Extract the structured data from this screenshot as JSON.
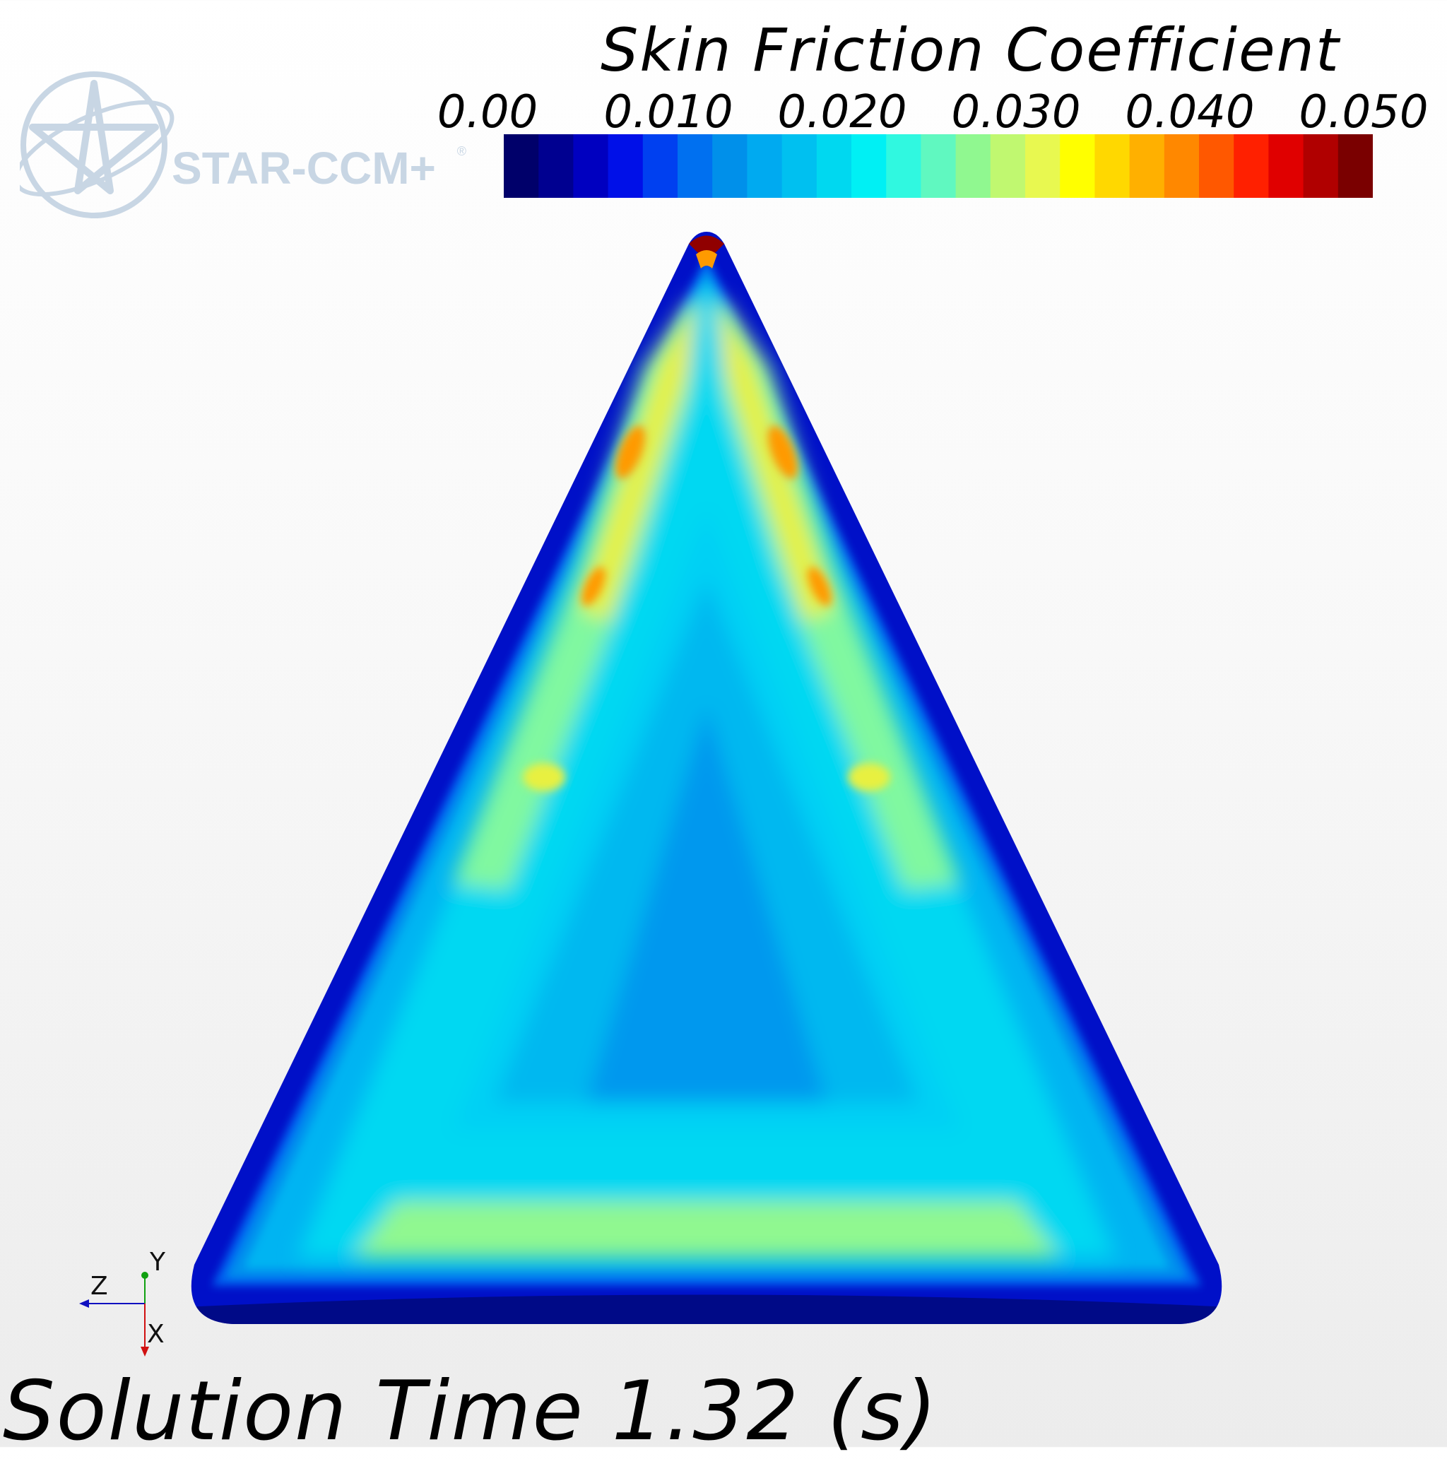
{
  "logo": {
    "text": "STAR-CCM+",
    "registered": "®",
    "icon": "star-ccm-logo-icon"
  },
  "legend": {
    "title": "Skin Friction Coefficient",
    "ticks": [
      "0.00",
      "0.010",
      "0.020",
      "0.030",
      "0.040",
      "0.050"
    ],
    "min": 0.0,
    "max": 0.05,
    "colormap": [
      "#00006a",
      "#000090",
      "#0000c0",
      "#0010e8",
      "#0040f0",
      "#0070f0",
      "#0090ea",
      "#00aaf0",
      "#00c0f0",
      "#00d8f0",
      "#00f0f4",
      "#30f8e0",
      "#60f8c0",
      "#90f890",
      "#c0f870",
      "#e8f850",
      "#ffff00",
      "#ffd800",
      "#ffb000",
      "#ff8800",
      "#ff5800",
      "#ff2000",
      "#e00000",
      "#b00000",
      "#7a0000"
    ]
  },
  "axes_triad": {
    "y": "Y",
    "z": "Z",
    "x": "X",
    "y_color": "#10a010",
    "z_color": "#1010c0",
    "x_color": "#d01010"
  },
  "footer": {
    "solution_time": "Solution Time 1.32 (s)"
  },
  "contour": {
    "field": "Skin Friction Coefficient",
    "colors": {
      "rim": "#0010c8",
      "low": "#0080f0",
      "center": "#0098ee",
      "mid": "#00c0f4",
      "cyan": "#00eef4",
      "green": "#80f8a0",
      "yellow": "#e8f040",
      "orange": "#ff9a00",
      "peak": "#900000"
    }
  }
}
